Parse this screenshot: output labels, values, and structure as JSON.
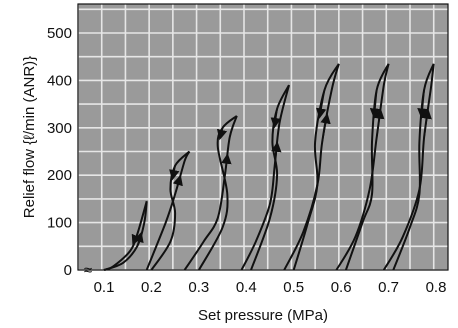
{
  "chart_data": {
    "type": "line",
    "title": "",
    "xlabel": "Set pressure (MPa)",
    "ylabel": "Relief flow {ℓ/min (ANR)}",
    "xlim": [
      0.05,
      0.85
    ],
    "ylim": [
      0,
      520
    ],
    "x_ticks": [
      0.1,
      0.2,
      0.3,
      0.4,
      0.5,
      0.6,
      0.7,
      0.8
    ],
    "x_tick_labels": [
      "0.1",
      "0.2",
      "0.3",
      "0.4",
      "0.5",
      "0.6",
      "0.7",
      "0.8"
    ],
    "y_ticks": [
      0,
      100,
      200,
      300,
      400,
      500
    ],
    "y_tick_labels": [
      "0",
      "100",
      "200",
      "300",
      "400",
      "500"
    ],
    "axis_break_symbol": "≈",
    "grid": true,
    "grid_color": "#e6e6e6",
    "line_color": "#111111",
    "series": [
      {
        "rising": [
          [
            0.1,
            0
          ],
          [
            0.14,
            15
          ],
          [
            0.17,
            50
          ],
          [
            0.185,
            100
          ],
          [
            0.19,
            145
          ]
        ],
        "falling": [
          [
            0.19,
            145
          ],
          [
            0.17,
            75
          ],
          [
            0.155,
            40
          ],
          [
            0.12,
            8
          ],
          [
            0.1,
            0
          ]
        ]
      },
      {
        "rising": [
          [
            0.19,
            0
          ],
          [
            0.23,
            100
          ],
          [
            0.25,
            160
          ],
          [
            0.27,
            230
          ],
          [
            0.28,
            250
          ]
        ],
        "falling": [
          [
            0.28,
            250
          ],
          [
            0.25,
            220
          ],
          [
            0.24,
            170
          ],
          [
            0.25,
            120
          ],
          [
            0.24,
            60
          ],
          [
            0.2,
            0
          ]
        ]
      },
      {
        "rising": [
          [
            0.27,
            0
          ],
          [
            0.31,
            60
          ],
          [
            0.34,
            110
          ],
          [
            0.355,
            200
          ],
          [
            0.365,
            280
          ],
          [
            0.38,
            325
          ]
        ],
        "falling": [
          [
            0.38,
            325
          ],
          [
            0.35,
            300
          ],
          [
            0.34,
            260
          ],
          [
            0.36,
            160
          ],
          [
            0.35,
            90
          ],
          [
            0.3,
            0
          ]
        ]
      },
      {
        "rising": [
          [
            0.39,
            0
          ],
          [
            0.42,
            60
          ],
          [
            0.45,
            140
          ],
          [
            0.46,
            220
          ],
          [
            0.47,
            310
          ],
          [
            0.49,
            390
          ]
        ],
        "falling": [
          [
            0.49,
            390
          ],
          [
            0.465,
            340
          ],
          [
            0.455,
            270
          ],
          [
            0.465,
            200
          ],
          [
            0.45,
            110
          ],
          [
            0.41,
            0
          ]
        ]
      },
      {
        "rising": [
          [
            0.48,
            0
          ],
          [
            0.52,
            80
          ],
          [
            0.55,
            180
          ],
          [
            0.56,
            270
          ],
          [
            0.58,
            380
          ],
          [
            0.595,
            435
          ]
        ],
        "falling": [
          [
            0.595,
            435
          ],
          [
            0.565,
            380
          ],
          [
            0.545,
            270
          ],
          [
            0.55,
            180
          ],
          [
            0.53,
            100
          ],
          [
            0.5,
            0
          ]
        ]
      },
      {
        "rising": [
          [
            0.59,
            0
          ],
          [
            0.63,
            70
          ],
          [
            0.66,
            170
          ],
          [
            0.675,
            280
          ],
          [
            0.69,
            390
          ],
          [
            0.7,
            435
          ]
        ],
        "falling": [
          [
            0.7,
            435
          ],
          [
            0.675,
            380
          ],
          [
            0.665,
            270
          ],
          [
            0.665,
            160
          ],
          [
            0.645,
            100
          ],
          [
            0.61,
            0
          ]
        ]
      },
      {
        "rising": [
          [
            0.69,
            0
          ],
          [
            0.73,
            70
          ],
          [
            0.765,
            170
          ],
          [
            0.775,
            280
          ],
          [
            0.79,
            390
          ],
          [
            0.795,
            435
          ]
        ],
        "falling": [
          [
            0.795,
            435
          ],
          [
            0.775,
            380
          ],
          [
            0.765,
            270
          ],
          [
            0.765,
            160
          ],
          [
            0.745,
            90
          ],
          [
            0.71,
            0
          ]
        ]
      }
    ]
  }
}
